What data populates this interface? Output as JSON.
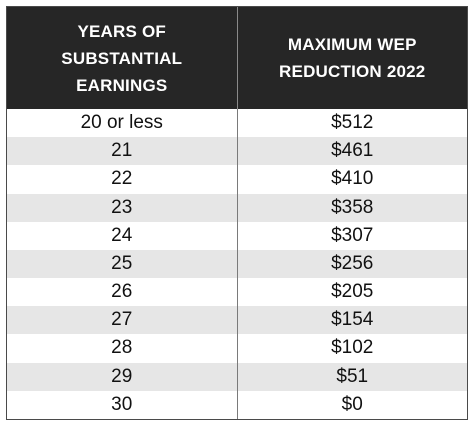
{
  "table": {
    "headers": {
      "years_line1": "YEARS OF SUBSTANTIAL",
      "years_line2": "EARNINGS",
      "reduction_line1": "MAXIMUM WEP",
      "reduction_line2": "REDUCTION 2022"
    },
    "rows": [
      {
        "years": "20 or less",
        "reduction": "$512"
      },
      {
        "years": "21",
        "reduction": "$461"
      },
      {
        "years": "22",
        "reduction": "$410"
      },
      {
        "years": "23",
        "reduction": "$358"
      },
      {
        "years": "24",
        "reduction": "$307"
      },
      {
        "years": "25",
        "reduction": "$256"
      },
      {
        "years": "26",
        "reduction": "$205"
      },
      {
        "years": "27",
        "reduction": "$154"
      },
      {
        "years": "28",
        "reduction": "$102"
      },
      {
        "years": "29",
        "reduction": "$51"
      },
      {
        "years": "30",
        "reduction": "$0"
      }
    ],
    "colors": {
      "header_background": "#262626",
      "header_text": "#ffffff",
      "shaded_row": "#e6e6e6",
      "plain_row": "#ffffff"
    }
  }
}
